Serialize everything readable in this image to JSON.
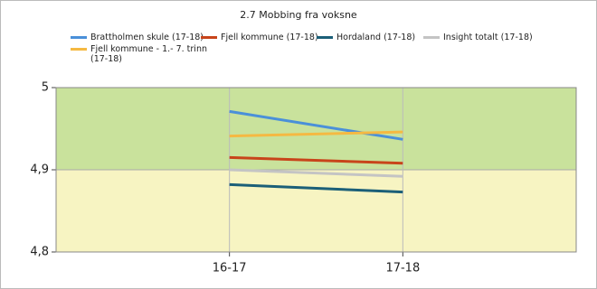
{
  "chart_data": {
    "type": "line",
    "title": "2.7 Mobbing fra voksne",
    "categories": [
      "16-17",
      "17-18"
    ],
    "series": [
      {
        "name": "Brattholmen skule (17-18)",
        "color": "#4a90d9",
        "values": [
          4.971,
          4.937
        ]
      },
      {
        "name": "Fjell kommune (17-18)",
        "color": "#c8441a",
        "values": [
          4.915,
          4.908
        ]
      },
      {
        "name": "Hordaland (17-18)",
        "color": "#1b5f78",
        "values": [
          4.882,
          4.873
        ]
      },
      {
        "name": "Insight totalt (17-18)",
        "color": "#c4c4c4",
        "values": [
          4.9,
          4.892
        ]
      },
      {
        "name": "Fjell kommune - 1.- 7. trinn (17-18)",
        "color": "#f5b942",
        "values": [
          4.941,
          4.946
        ]
      }
    ],
    "bands": [
      {
        "from": 4.9,
        "to": 5,
        "color": "#c9e29c"
      },
      {
        "from": 4.8,
        "to": 4.9,
        "color": "#f7f4c2"
      }
    ],
    "ylim": [
      4.8,
      5
    ],
    "yticks": [
      {
        "value": 4.8,
        "label": "4,8"
      },
      {
        "value": 4.9,
        "label": "4,9"
      },
      {
        "value": 5,
        "label": "5"
      }
    ],
    "grid": true
  }
}
